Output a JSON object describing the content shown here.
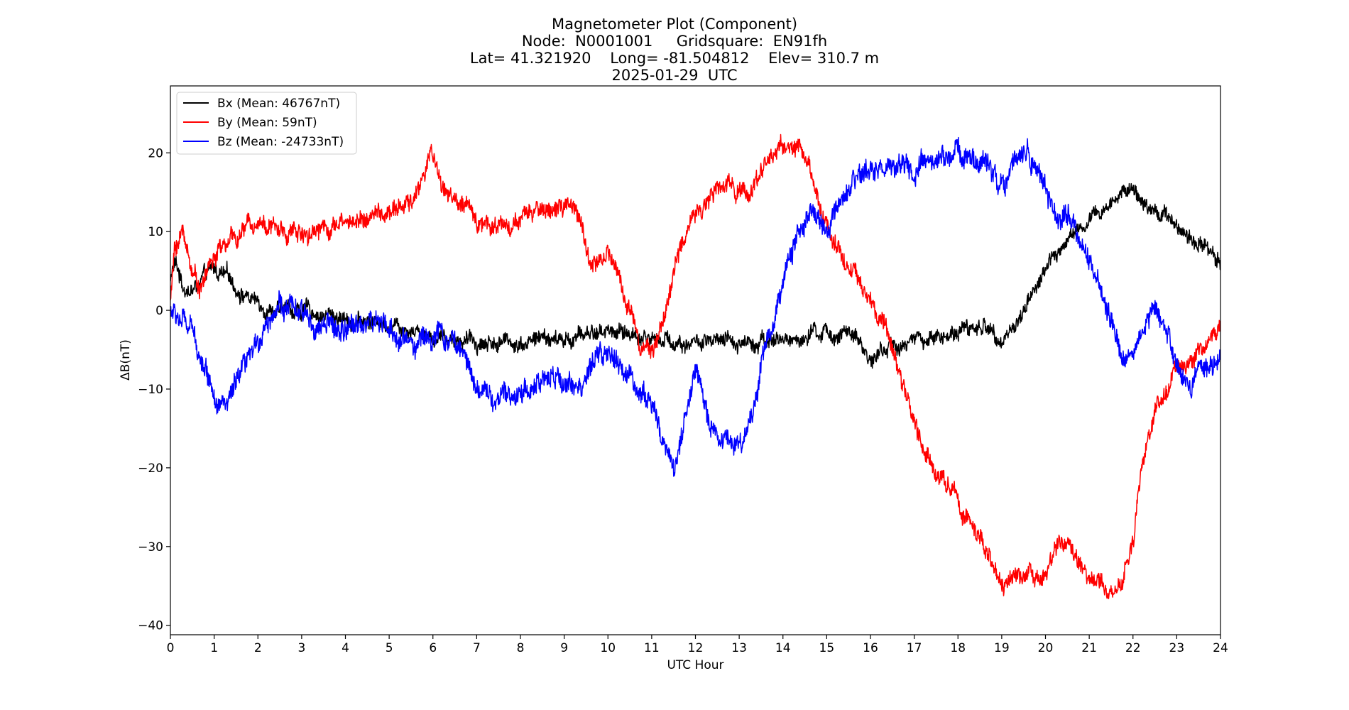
{
  "chart_data": {
    "type": "line",
    "title_lines": [
      "Magnetometer Plot (Component)",
      "Node:  N0001001     Gridsquare:  EN91fh",
      "Lat= 41.321920    Long= -81.504812    Elev= 310.7 m",
      "2025-01-29  UTC"
    ],
    "xlabel": "UTC Hour",
    "ylabel": "ΔB(nT)",
    "xlim": [
      0,
      24
    ],
    "ylim": [
      -41.2,
      28.5
    ],
    "xticks": [
      0,
      1,
      2,
      3,
      4,
      5,
      6,
      7,
      8,
      9,
      10,
      11,
      12,
      13,
      14,
      15,
      16,
      17,
      18,
      19,
      20,
      21,
      22,
      23,
      24
    ],
    "yticks": [
      20,
      10,
      0,
      -10,
      -20,
      -30,
      -40
    ],
    "ytick_labels": [
      "20",
      "10",
      "0",
      "−10",
      "−20",
      "−30",
      "−40"
    ],
    "grid": false,
    "legend_position": "top-left",
    "series": [
      {
        "name": "Bx (Mean: 46767nT)",
        "color": "#000000",
        "noise": 1.2,
        "x": [
          0,
          0.1,
          0.3,
          0.5,
          0.8,
          1.0,
          1.3,
          1.6,
          2.0,
          2.5,
          3.0,
          3.5,
          4.0,
          4.5,
          5.0,
          5.5,
          6.0,
          6.5,
          7.0,
          7.5,
          8.0,
          8.5,
          9.0,
          9.5,
          10.0,
          10.5,
          11.0,
          11.5,
          12.0,
          12.5,
          13.0,
          13.5,
          14.0,
          14.5,
          15.0,
          15.5,
          15.8,
          16.0,
          16.5,
          17.0,
          17.5,
          18.0,
          18.5,
          19.0,
          19.3,
          19.6,
          20.0,
          20.5,
          21.0,
          21.5,
          21.9,
          22.2,
          22.5,
          23.0,
          23.5,
          24.0
        ],
        "y": [
          4,
          6,
          3,
          2.5,
          4,
          5,
          4,
          2.5,
          1,
          0,
          0,
          -0.5,
          -1,
          -1.5,
          -1.5,
          -2,
          -3,
          -3.5,
          -4,
          -4,
          -4,
          -3.5,
          -4,
          -3,
          -2.5,
          -3,
          -3.5,
          -4,
          -4,
          -4.5,
          -4,
          -3.5,
          -4,
          -3.5,
          -3,
          -3,
          -5,
          -6,
          -4.5,
          -4,
          -3.5,
          -2.5,
          -2,
          -3,
          -2.5,
          1.5,
          5,
          9,
          11,
          13.5,
          16,
          14,
          13,
          11,
          9,
          6.5
        ]
      },
      {
        "name": "By (Mean: 59nT)",
        "color": "#ff0000",
        "noise": 1.4,
        "x": [
          0,
          0.1,
          0.3,
          0.5,
          0.7,
          0.9,
          1.2,
          1.5,
          2.0,
          2.5,
          3.0,
          3.5,
          4.0,
          4.5,
          5.0,
          5.5,
          5.8,
          5.95,
          6.2,
          6.5,
          7.0,
          7.5,
          8.0,
          8.5,
          9.0,
          9.3,
          9.6,
          10.0,
          10.2,
          10.5,
          10.8,
          11.0,
          11.2,
          11.5,
          12.0,
          12.5,
          13.0,
          13.3,
          13.6,
          14.0,
          14.3,
          14.6,
          14.9,
          15.3,
          15.6,
          16.0,
          16.5,
          17.0,
          17.3,
          17.6,
          18.0,
          18.4,
          18.8,
          19.0,
          19.3,
          19.6,
          20.0,
          20.3,
          20.6,
          20.9,
          21.2,
          21.5,
          21.8,
          22.0,
          22.2,
          22.5,
          23.0,
          23.5,
          24.0
        ],
        "y": [
          1,
          8,
          10,
          5,
          3,
          6,
          8,
          9,
          12,
          10,
          10,
          11,
          11,
          12,
          12,
          13.5,
          17,
          21,
          16,
          14,
          11.5,
          11,
          11,
          13,
          13,
          12,
          6,
          7,
          5,
          0,
          -4,
          -4.5,
          -3,
          5,
          13,
          15,
          16,
          15,
          19,
          21,
          21,
          18,
          12,
          8,
          5,
          1,
          -5,
          -14,
          -19,
          -21,
          -24,
          -28,
          -33,
          -36,
          -34,
          -33,
          -33,
          -30,
          -31,
          -34,
          -35,
          -36,
          -33,
          -30,
          -20,
          -12,
          -8,
          -5,
          -2
        ]
      },
      {
        "name": "Bz (Mean: -24733nT)",
        "color": "#0000ff",
        "noise": 1.7,
        "x": [
          0,
          0.2,
          0.5,
          0.8,
          1.0,
          1.3,
          1.6,
          1.9,
          2.2,
          2.5,
          3.0,
          3.5,
          4.0,
          4.5,
          5.0,
          5.5,
          6.0,
          6.5,
          7.0,
          7.5,
          8.0,
          8.5,
          9.0,
          9.5,
          10.0,
          10.3,
          10.6,
          11.0,
          11.3,
          11.5,
          11.8,
          12.0,
          12.3,
          12.6,
          13.0,
          13.3,
          13.6,
          14.0,
          14.3,
          14.6,
          15.0,
          15.3,
          15.6,
          16.0,
          16.5,
          17.0,
          17.5,
          18.0,
          18.5,
          19.0,
          19.3,
          19.6,
          20.0,
          20.3,
          20.6,
          21.0,
          21.3,
          21.6,
          22.0,
          22.3,
          22.5,
          22.8,
          23.0,
          23.3,
          23.5,
          24.0
        ],
        "y": [
          0,
          -1,
          -3,
          -7,
          -10,
          -12,
          -9,
          -6,
          -1,
          1,
          -1,
          -2,
          -3,
          -1,
          -3,
          -4,
          -3,
          -4,
          -9,
          -12,
          -10,
          -9,
          -9,
          -9,
          -5,
          -8,
          -9,
          -12,
          -17,
          -20,
          -13,
          -8,
          -14,
          -16,
          -17,
          -13,
          -4,
          3,
          10,
          12,
          10,
          12,
          15,
          18,
          18,
          17,
          19,
          20,
          19,
          17,
          19,
          21,
          15,
          12,
          11,
          6,
          1,
          -4,
          -5,
          -2,
          0,
          -4,
          -7,
          -10,
          -7,
          -6
        ]
      }
    ]
  }
}
